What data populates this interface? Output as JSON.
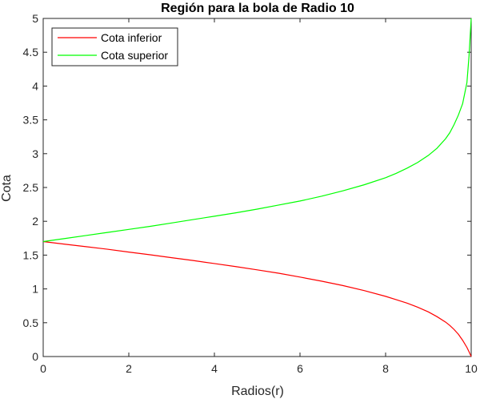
{
  "chart_data": {
    "type": "line",
    "title": "Región para la bola de Radio 10",
    "xlabel": "Radios(r)",
    "ylabel": "Cota",
    "xlim": [
      0,
      10
    ],
    "ylim": [
      0,
      5
    ],
    "x_ticks": [
      "0",
      "2",
      "4",
      "6",
      "8",
      "10"
    ],
    "y_ticks": [
      "0",
      "0.5",
      "1",
      "1.5",
      "2",
      "2.5",
      "3",
      "3.5",
      "4",
      "4.5",
      "5"
    ],
    "grid": false,
    "legend_position": "top-left",
    "x": [
      0,
      0.5,
      1,
      1.5,
      2,
      2.5,
      3,
      3.5,
      4,
      4.5,
      5,
      5.5,
      6,
      6.5,
      7,
      7.5,
      8,
      8.25,
      8.5,
      8.75,
      9,
      9.2,
      9.4,
      9.5,
      9.6,
      9.7,
      9.8,
      9.9,
      9.95,
      10
    ],
    "series": [
      {
        "name": "Cota inferior",
        "color": "#ff0000",
        "values": [
          1.7,
          1.662,
          1.625,
          1.587,
          1.545,
          1.505,
          1.462,
          1.42,
          1.375,
          1.33,
          1.282,
          1.232,
          1.175,
          1.115,
          1.05,
          0.975,
          0.89,
          0.84,
          0.79,
          0.73,
          0.66,
          0.59,
          0.51,
          0.46,
          0.4,
          0.33,
          0.24,
          0.135,
          0.07,
          0.0
        ]
      },
      {
        "name": "Cota superior",
        "color": "#00ff00",
        "values": [
          1.7,
          1.745,
          1.79,
          1.835,
          1.88,
          1.925,
          1.975,
          2.025,
          2.075,
          2.125,
          2.18,
          2.24,
          2.3,
          2.37,
          2.45,
          2.54,
          2.645,
          2.71,
          2.785,
          2.87,
          2.975,
          3.08,
          3.22,
          3.31,
          3.43,
          3.57,
          3.74,
          4.05,
          4.45,
          5.0
        ]
      }
    ]
  }
}
